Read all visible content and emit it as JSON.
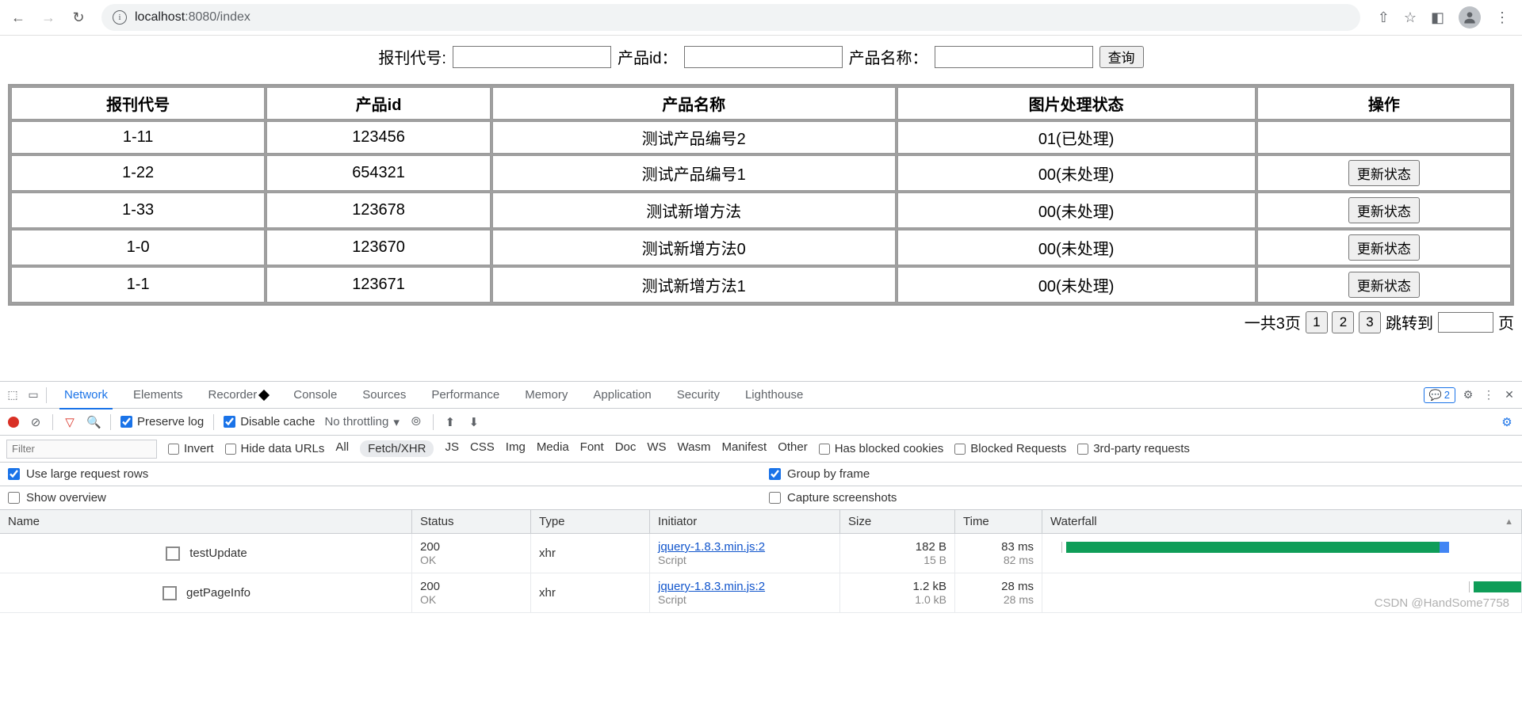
{
  "browser": {
    "url_host": "localhost",
    "url_port": ":8080",
    "url_path": "/index"
  },
  "search": {
    "label_code": "报刊代号:",
    "label_pid": "产品id：",
    "label_pname": "产品名称：",
    "button": "查询"
  },
  "table": {
    "headers": [
      "报刊代号",
      "产品id",
      "产品名称",
      "图片处理状态",
      "操作"
    ],
    "rows": [
      {
        "code": "1-11",
        "pid": "123456",
        "pname": "测试产品编号2",
        "status": "01(已处理)",
        "action": ""
      },
      {
        "code": "1-22",
        "pid": "654321",
        "pname": "测试产品编号1",
        "status": "00(未处理)",
        "action": "更新状态"
      },
      {
        "code": "1-33",
        "pid": "123678",
        "pname": "测试新增方法",
        "status": "00(未处理)",
        "action": "更新状态"
      },
      {
        "code": "1-0",
        "pid": "123670",
        "pname": "测试新增方法0",
        "status": "00(未处理)",
        "action": "更新状态"
      },
      {
        "code": "1-1",
        "pid": "123671",
        "pname": "测试新增方法1",
        "status": "00(未处理)",
        "action": "更新状态"
      }
    ]
  },
  "pager": {
    "total": "一共3页",
    "pages": [
      "1",
      "2",
      "3"
    ],
    "jump_pre": "跳转到",
    "jump_suf": "页"
  },
  "devtools": {
    "tabs": [
      "Network",
      "Elements",
      "Recorder",
      "Console",
      "Sources",
      "Performance",
      "Memory",
      "Application",
      "Security",
      "Lighthouse"
    ],
    "active_tab": "Network",
    "msg_count": "2",
    "toolbar": {
      "preserve": "Preserve log",
      "disable_cache": "Disable cache",
      "throttle": "No throttling"
    },
    "filter": {
      "placeholder": "Filter",
      "invert": "Invert",
      "hide": "Hide data URLs",
      "types": [
        "All",
        "Fetch/XHR",
        "JS",
        "CSS",
        "Img",
        "Media",
        "Font",
        "Doc",
        "WS",
        "Wasm",
        "Manifest",
        "Other"
      ],
      "selected": "Fetch/XHR",
      "blocked_cookies": "Has blocked cookies",
      "blocked_req": "Blocked Requests",
      "third": "3rd-party requests"
    },
    "opts": {
      "large": "Use large request rows",
      "group": "Group by frame",
      "overview": "Show overview",
      "capture": "Capture screenshots"
    },
    "columns": [
      "Name",
      "Status",
      "Type",
      "Initiator",
      "Size",
      "Time",
      "Waterfall"
    ],
    "requests": [
      {
        "name": "testUpdate",
        "status": "200",
        "status_text": "OK",
        "type": "xhr",
        "initiator": "jquery-1.8.3.min.js:2",
        "initiator_sub": "Script",
        "size": "182 B",
        "size_sub": "15 B",
        "time": "83 ms",
        "time_sub": "82 ms",
        "wf_start_pct": 5,
        "wf_width_pct": 78,
        "wf_blue_pct": 2
      },
      {
        "name": "getPageInfo",
        "status": "200",
        "status_text": "OK",
        "type": "xhr",
        "initiator": "jquery-1.8.3.min.js:2",
        "initiator_sub": "Script",
        "size": "1.2 kB",
        "size_sub": "1.0 kB",
        "time": "28 ms",
        "time_sub": "28 ms",
        "wf_start_pct": 90,
        "wf_width_pct": 10,
        "wf_blue_pct": 0
      }
    ]
  },
  "watermark": "CSDN @HandSome7758"
}
